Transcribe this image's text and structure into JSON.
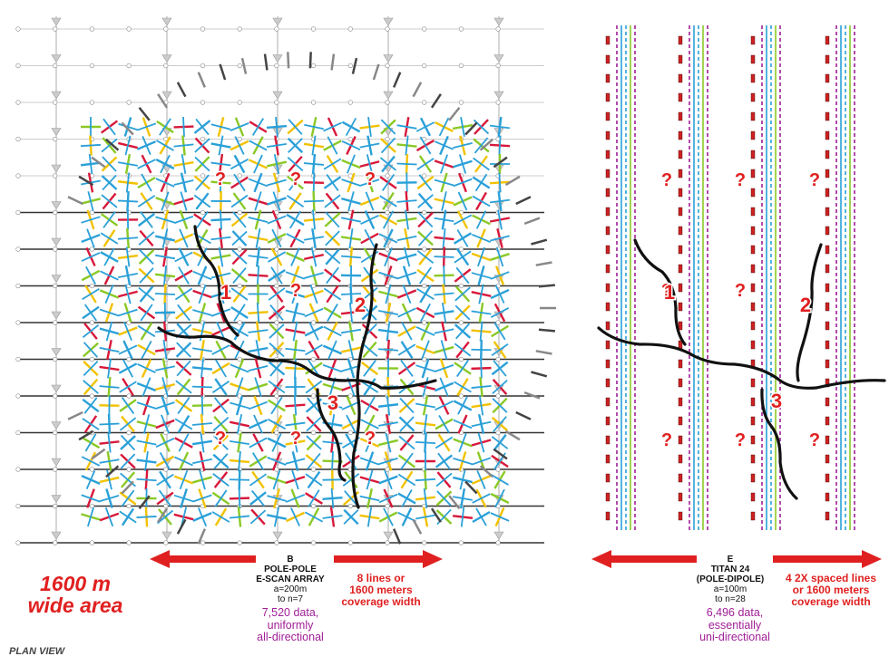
{
  "colors": {
    "red": "#e02020",
    "purple": "#a01e96",
    "blue": "#2aa0d8",
    "yellow": "#f2c200",
    "green": "#8ac926",
    "crimson": "#d8183a",
    "gray": "#555555"
  },
  "markers": {
    "question": "?",
    "zones": [
      "1",
      "2",
      "3"
    ]
  },
  "left_panel": {
    "array_letter": "B",
    "array_name_1": "POLE-POLE",
    "array_name_2": "E-SCAN ARRAY",
    "spacing": "a=200m",
    "levels": "to n=7",
    "coverage_1": "8 lines or",
    "coverage_2": "1600 meters",
    "coverage_3": "coverage width",
    "data_1": "7,520 data,",
    "data_2": "uniformly",
    "data_3": "all-directional"
  },
  "right_panel": {
    "array_letter": "E",
    "array_name_1": "TITAN 24",
    "array_name_2": "(POLE-DIPOLE)",
    "spacing": "a=100m",
    "levels": "to n=28",
    "coverage_1": "4 2X spaced lines",
    "coverage_2": "or 1600 meters",
    "coverage_3": "coverage width",
    "data_1": "6,496 data,",
    "data_2": "essentially",
    "data_3": "uni-directional"
  },
  "area_1": "1600 m",
  "area_2": "wide area",
  "view_label": "PLAN VIEW"
}
